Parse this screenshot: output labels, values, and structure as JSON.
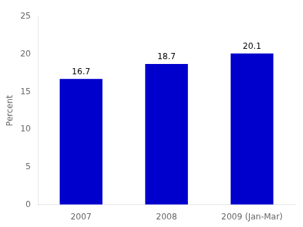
{
  "chart_data": {
    "type": "bar",
    "y_label": "Percent",
    "categories": [
      "2007",
      "2008",
      "2009 (Jan-Mar)"
    ],
    "values": [
      16.7,
      18.7,
      20.1
    ],
    "color": "#0000cc",
    "ylim": [
      0,
      25
    ],
    "yticks": [
      0,
      5,
      10,
      15,
      20,
      25
    ],
    "grid": false,
    "data_labels": true
  }
}
